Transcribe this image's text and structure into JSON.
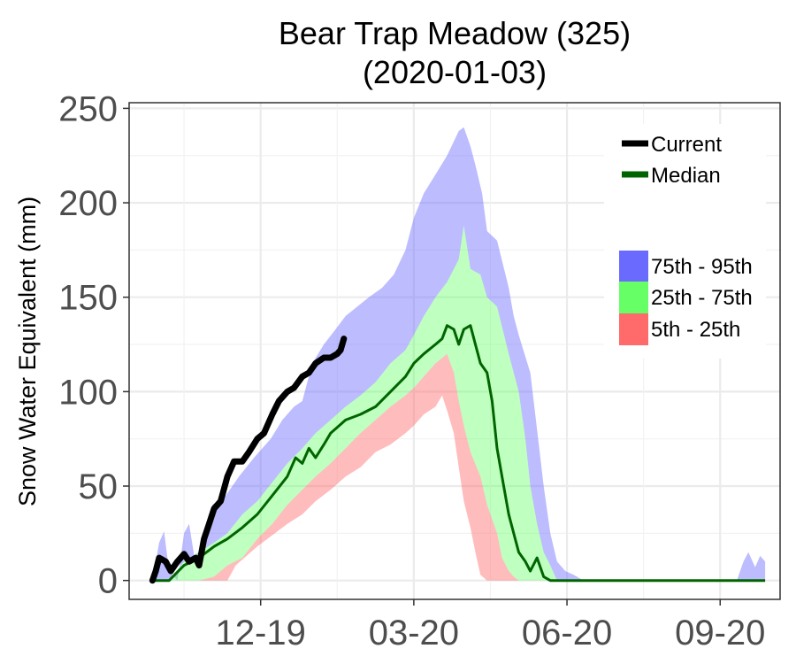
{
  "chart_data": {
    "type": "area",
    "title": "Bear Trap Meadow (325)",
    "subtitle": "(2020-01-03)",
    "xlabel": "",
    "ylabel": "Snow Water Equivalent (mm)",
    "x_domain": [
      "2019-10-01",
      "2020-10-26"
    ],
    "ylim": [
      -10,
      253
    ],
    "yticks": [
      0,
      50,
      100,
      150,
      200,
      250
    ],
    "xticks": [
      {
        "date": "2019-12-19",
        "label": "12-19"
      },
      {
        "date": "2020-03-20",
        "label": "03-20"
      },
      {
        "date": "2020-06-20",
        "label": "06-20"
      },
      {
        "date": "2020-09-20",
        "label": "09-20"
      }
    ],
    "grid": true,
    "legend_position": "top-right",
    "colors": {
      "current": "#000000",
      "median": "#006400",
      "band_75_95": "#6a6aff",
      "band_25_75": "#66ff66",
      "band_5_25": "#ff6a6a"
    },
    "legend": {
      "lines": [
        {
          "key": "current",
          "label": "Current"
        },
        {
          "key": "median",
          "label": "Median"
        }
      ],
      "bands": [
        {
          "key": "band_75_95",
          "label": "75th - 95th"
        },
        {
          "key": "band_25_75",
          "label": "25th - 75th"
        },
        {
          "key": "band_5_25",
          "label": "5th - 25th"
        }
      ]
    },
    "series": {
      "p95": [
        [
          "2019-10-15",
          0
        ],
        [
          "2019-10-19",
          20
        ],
        [
          "2019-10-22",
          26
        ],
        [
          "2019-10-25",
          5
        ],
        [
          "2019-10-30",
          0
        ],
        [
          "2019-11-03",
          25
        ],
        [
          "2019-11-06",
          30
        ],
        [
          "2019-11-10",
          8
        ],
        [
          "2019-11-15",
          25
        ],
        [
          "2019-11-20",
          40
        ],
        [
          "2019-11-28",
          45
        ],
        [
          "2019-12-06",
          55
        ],
        [
          "2019-12-15",
          65
        ],
        [
          "2019-12-25",
          75
        ],
        [
          "2020-01-01",
          85
        ],
        [
          "2020-01-08",
          92
        ],
        [
          "2020-01-13",
          95
        ],
        [
          "2020-01-19",
          115
        ],
        [
          "2020-01-26",
          125
        ],
        [
          "2020-02-02",
          133
        ],
        [
          "2020-02-08",
          140
        ],
        [
          "2020-02-15",
          145
        ],
        [
          "2020-02-22",
          150
        ],
        [
          "2020-03-01",
          155
        ],
        [
          "2020-03-08",
          162
        ],
        [
          "2020-03-15",
          175
        ],
        [
          "2020-03-20",
          192
        ],
        [
          "2020-03-26",
          205
        ],
        [
          "2020-04-02",
          215
        ],
        [
          "2020-04-09",
          225
        ],
        [
          "2020-04-16",
          238
        ],
        [
          "2020-04-19",
          240
        ],
        [
          "2020-04-23",
          230
        ],
        [
          "2020-04-26",
          220
        ],
        [
          "2020-04-30",
          205
        ],
        [
          "2020-05-03",
          185
        ],
        [
          "2020-05-09",
          180
        ],
        [
          "2020-05-16",
          155
        ],
        [
          "2020-05-19",
          140
        ],
        [
          "2020-05-22",
          130
        ],
        [
          "2020-05-29",
          110
        ],
        [
          "2020-06-02",
          80
        ],
        [
          "2020-06-06",
          50
        ],
        [
          "2020-06-10",
          25
        ],
        [
          "2020-06-14",
          10
        ],
        [
          "2020-06-19",
          5
        ],
        [
          "2020-06-24",
          3
        ],
        [
          "2020-06-30",
          0
        ],
        [
          "2020-09-30",
          0
        ],
        [
          "2020-10-04",
          10
        ],
        [
          "2020-10-07",
          15
        ],
        [
          "2020-10-11",
          7
        ],
        [
          "2020-10-14",
          13
        ],
        [
          "2020-10-17",
          10
        ],
        [
          "2020-10-17",
          0
        ]
      ],
      "p75": [
        [
          "2019-10-15",
          0
        ],
        [
          "2019-10-25",
          0
        ],
        [
          "2019-11-03",
          10
        ],
        [
          "2019-11-12",
          15
        ],
        [
          "2019-11-21",
          20
        ],
        [
          "2019-11-29",
          25
        ],
        [
          "2019-12-08",
          35
        ],
        [
          "2019-12-17",
          42
        ],
        [
          "2019-12-26",
          52
        ],
        [
          "2020-01-04",
          62
        ],
        [
          "2020-01-13",
          70
        ],
        [
          "2020-01-21",
          78
        ],
        [
          "2020-01-30",
          85
        ],
        [
          "2020-02-08",
          92
        ],
        [
          "2020-02-17",
          98
        ],
        [
          "2020-02-26",
          105
        ],
        [
          "2020-03-06",
          115
        ],
        [
          "2020-03-15",
          122
        ],
        [
          "2020-03-20",
          130
        ],
        [
          "2020-03-26",
          140
        ],
        [
          "2020-04-02",
          150
        ],
        [
          "2020-04-09",
          158
        ],
        [
          "2020-04-16",
          170
        ],
        [
          "2020-04-19",
          188
        ],
        [
          "2020-04-23",
          165
        ],
        [
          "2020-04-29",
          162
        ],
        [
          "2020-05-03",
          150
        ],
        [
          "2020-05-09",
          145
        ],
        [
          "2020-05-16",
          120
        ],
        [
          "2020-05-22",
          100
        ],
        [
          "2020-05-26",
          75
        ],
        [
          "2020-05-29",
          50
        ],
        [
          "2020-06-02",
          30
        ],
        [
          "2020-06-06",
          15
        ],
        [
          "2020-06-10",
          8
        ],
        [
          "2020-06-14",
          0
        ]
      ],
      "p25": [
        [
          "2019-10-15",
          0
        ],
        [
          "2019-11-12",
          0
        ],
        [
          "2019-11-21",
          2
        ],
        [
          "2019-11-29",
          8
        ],
        [
          "2019-12-08",
          12
        ],
        [
          "2019-12-17",
          22
        ],
        [
          "2019-12-26",
          30
        ],
        [
          "2020-01-04",
          40
        ],
        [
          "2020-01-13",
          48
        ],
        [
          "2020-01-21",
          55
        ],
        [
          "2020-01-30",
          62
        ],
        [
          "2020-02-08",
          70
        ],
        [
          "2020-02-17",
          78
        ],
        [
          "2020-02-26",
          85
        ],
        [
          "2020-03-06",
          92
        ],
        [
          "2020-03-15",
          98
        ],
        [
          "2020-03-20",
          102
        ],
        [
          "2020-03-26",
          108
        ],
        [
          "2020-04-02",
          115
        ],
        [
          "2020-04-09",
          120
        ],
        [
          "2020-04-13",
          110
        ],
        [
          "2020-04-16",
          95
        ],
        [
          "2020-04-19",
          82
        ],
        [
          "2020-04-23",
          68
        ],
        [
          "2020-04-29",
          55
        ],
        [
          "2020-05-03",
          40
        ],
        [
          "2020-05-09",
          25
        ],
        [
          "2020-05-12",
          12
        ],
        [
          "2020-05-16",
          5
        ],
        [
          "2020-05-19",
          2
        ],
        [
          "2020-05-22",
          0
        ]
      ],
      "p5": [
        [
          "2019-10-15",
          0
        ],
        [
          "2019-11-29",
          0
        ],
        [
          "2019-12-04",
          8
        ],
        [
          "2019-12-17",
          18
        ],
        [
          "2019-12-26",
          24
        ],
        [
          "2020-01-04",
          30
        ],
        [
          "2020-01-13",
          35
        ],
        [
          "2020-01-21",
          42
        ],
        [
          "2020-01-30",
          48
        ],
        [
          "2020-02-08",
          55
        ],
        [
          "2020-02-17",
          60
        ],
        [
          "2020-02-26",
          68
        ],
        [
          "2020-03-06",
          72
        ],
        [
          "2020-03-15",
          78
        ],
        [
          "2020-03-20",
          82
        ],
        [
          "2020-03-26",
          88
        ],
        [
          "2020-04-02",
          92
        ],
        [
          "2020-04-06",
          98
        ],
        [
          "2020-04-09",
          90
        ],
        [
          "2020-04-13",
          78
        ],
        [
          "2020-04-16",
          60
        ],
        [
          "2020-04-19",
          42
        ],
        [
          "2020-04-23",
          28
        ],
        [
          "2020-04-26",
          15
        ],
        [
          "2020-04-29",
          3
        ],
        [
          "2020-05-03",
          0
        ]
      ],
      "median": [
        [
          "2019-10-15",
          0
        ],
        [
          "2019-10-25",
          0
        ],
        [
          "2019-11-03",
          8
        ],
        [
          "2019-11-12",
          12
        ],
        [
          "2019-11-21",
          18
        ],
        [
          "2019-11-29",
          22
        ],
        [
          "2019-12-08",
          28
        ],
        [
          "2019-12-17",
          35
        ],
        [
          "2019-12-26",
          45
        ],
        [
          "2020-01-04",
          55
        ],
        [
          "2020-01-09",
          65
        ],
        [
          "2020-01-13",
          62
        ],
        [
          "2020-01-17",
          70
        ],
        [
          "2020-01-21",
          65
        ],
        [
          "2020-01-26",
          72
        ],
        [
          "2020-01-30",
          78
        ],
        [
          "2020-02-08",
          85
        ],
        [
          "2020-02-17",
          88
        ],
        [
          "2020-02-26",
          92
        ],
        [
          "2020-03-06",
          100
        ],
        [
          "2020-03-15",
          108
        ],
        [
          "2020-03-20",
          115
        ],
        [
          "2020-03-26",
          120
        ],
        [
          "2020-04-02",
          125
        ],
        [
          "2020-04-06",
          128
        ],
        [
          "2020-04-09",
          135
        ],
        [
          "2020-04-13",
          133
        ],
        [
          "2020-04-16",
          125
        ],
        [
          "2020-04-19",
          133
        ],
        [
          "2020-04-23",
          135
        ],
        [
          "2020-04-26",
          125
        ],
        [
          "2020-04-29",
          115
        ],
        [
          "2020-05-03",
          110
        ],
        [
          "2020-05-06",
          95
        ],
        [
          "2020-05-09",
          70
        ],
        [
          "2020-05-12",
          55
        ],
        [
          "2020-05-16",
          35
        ],
        [
          "2020-05-19",
          25
        ],
        [
          "2020-05-22",
          15
        ],
        [
          "2020-05-26",
          10
        ],
        [
          "2020-05-29",
          5
        ],
        [
          "2020-06-02",
          12
        ],
        [
          "2020-06-06",
          2
        ],
        [
          "2020-06-10",
          0
        ],
        [
          "2020-10-17",
          0
        ]
      ],
      "current": [
        [
          "2019-10-15",
          0
        ],
        [
          "2019-10-17",
          5
        ],
        [
          "2019-10-19",
          12
        ],
        [
          "2019-10-23",
          10
        ],
        [
          "2019-10-26",
          5
        ],
        [
          "2019-10-30",
          10
        ],
        [
          "2019-11-03",
          14
        ],
        [
          "2019-11-06",
          10
        ],
        [
          "2019-11-10",
          12
        ],
        [
          "2019-11-12",
          8
        ],
        [
          "2019-11-15",
          22
        ],
        [
          "2019-11-18",
          30
        ],
        [
          "2019-11-21",
          38
        ],
        [
          "2019-11-25",
          42
        ],
        [
          "2019-11-29",
          55
        ],
        [
          "2019-12-03",
          63
        ],
        [
          "2019-12-08",
          63
        ],
        [
          "2019-12-12",
          68
        ],
        [
          "2019-12-17",
          75
        ],
        [
          "2019-12-21",
          78
        ],
        [
          "2019-12-26",
          88
        ],
        [
          "2019-12-30",
          95
        ],
        [
          "2020-01-04",
          100
        ],
        [
          "2020-01-08",
          102
        ],
        [
          "2020-01-13",
          108
        ],
        [
          "2020-01-17",
          110
        ],
        [
          "2020-01-21",
          115
        ],
        [
          "2020-01-26",
          118
        ],
        [
          "2020-01-30",
          118
        ],
        [
          "2020-02-03",
          120
        ],
        [
          "2020-02-05",
          122
        ],
        [
          "2020-02-07",
          128
        ]
      ]
    }
  }
}
